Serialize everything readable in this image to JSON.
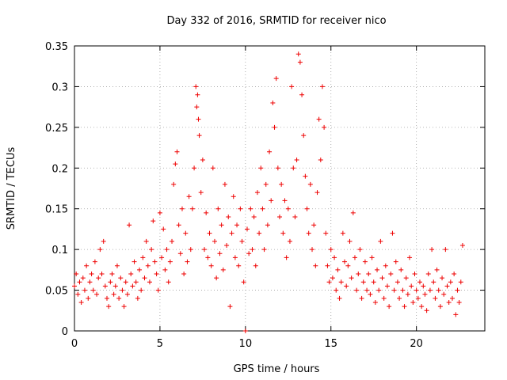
{
  "chart_data": {
    "type": "scatter",
    "title": "Day 332 of 2016, SRMTID for receiver nico",
    "xlabel": "GPS time / hours",
    "ylabel": "SRMTID / TECUs",
    "xlim": [
      0,
      24
    ],
    "ylim": [
      0,
      0.35
    ],
    "xticks": [
      0,
      5,
      10,
      15,
      20
    ],
    "yticks": [
      0,
      0.05,
      0.1,
      0.15,
      0.2,
      0.25,
      0.3,
      0.35
    ],
    "xtick_labels": [
      "0",
      "5",
      "10",
      "15",
      "20"
    ],
    "ytick_labels": [
      "0",
      "0.05",
      "0.1",
      "0.15",
      "0.2",
      "0.25",
      "0.3",
      "0.35"
    ],
    "grid": true,
    "marker": "+",
    "color": "#ee0000",
    "series": [
      {
        "points": [
          [
            0.0,
            0.055
          ],
          [
            0.1,
            0.07
          ],
          [
            0.2,
            0.045
          ],
          [
            0.3,
            0.06
          ],
          [
            0.4,
            0.035
          ],
          [
            0.5,
            0.065
          ],
          [
            0.6,
            0.05
          ],
          [
            0.7,
            0.08
          ],
          [
            0.8,
            0.04
          ],
          [
            0.9,
            0.06
          ],
          [
            1.0,
            0.07
          ],
          [
            1.1,
            0.05
          ],
          [
            1.2,
            0.085
          ],
          [
            1.3,
            0.045
          ],
          [
            1.4,
            0.065
          ],
          [
            1.5,
            0.1
          ],
          [
            1.6,
            0.07
          ],
          [
            1.7,
            0.11
          ],
          [
            1.8,
            0.055
          ],
          [
            1.9,
            0.04
          ],
          [
            2.0,
            0.03
          ],
          [
            2.1,
            0.06
          ],
          [
            2.2,
            0.07
          ],
          [
            2.3,
            0.045
          ],
          [
            2.4,
            0.055
          ],
          [
            2.5,
            0.08
          ],
          [
            2.6,
            0.04
          ],
          [
            2.7,
            0.065
          ],
          [
            2.8,
            0.05
          ],
          [
            2.9,
            0.03
          ],
          [
            3.0,
            0.06
          ],
          [
            3.1,
            0.045
          ],
          [
            3.2,
            0.13
          ],
          [
            3.3,
            0.07
          ],
          [
            3.4,
            0.055
          ],
          [
            3.5,
            0.085
          ],
          [
            3.6,
            0.06
          ],
          [
            3.7,
            0.04
          ],
          [
            3.8,
            0.075
          ],
          [
            3.9,
            0.05
          ],
          [
            4.0,
            0.09
          ],
          [
            4.1,
            0.065
          ],
          [
            4.2,
            0.11
          ],
          [
            4.3,
            0.08
          ],
          [
            4.4,
            0.06
          ],
          [
            4.5,
            0.1
          ],
          [
            4.6,
            0.135
          ],
          [
            4.7,
            0.085
          ],
          [
            4.8,
            0.07
          ],
          [
            4.9,
            0.05
          ],
          [
            5.0,
            0.145
          ],
          [
            5.1,
            0.09
          ],
          [
            5.2,
            0.125
          ],
          [
            5.3,
            0.075
          ],
          [
            5.4,
            0.1
          ],
          [
            5.5,
            0.06
          ],
          [
            5.6,
            0.085
          ],
          [
            5.7,
            0.11
          ],
          [
            5.8,
            0.18
          ],
          [
            5.9,
            0.205
          ],
          [
            6.0,
            0.22
          ],
          [
            6.1,
            0.13
          ],
          [
            6.2,
            0.095
          ],
          [
            6.3,
            0.15
          ],
          [
            6.4,
            0.07
          ],
          [
            6.5,
            0.12
          ],
          [
            6.6,
            0.085
          ],
          [
            6.7,
            0.165
          ],
          [
            6.8,
            0.1
          ],
          [
            6.9,
            0.15
          ],
          [
            7.0,
            0.2
          ],
          [
            7.1,
            0.3
          ],
          [
            7.15,
            0.275
          ],
          [
            7.2,
            0.29
          ],
          [
            7.25,
            0.26
          ],
          [
            7.3,
            0.24
          ],
          [
            7.4,
            0.17
          ],
          [
            7.5,
            0.21
          ],
          [
            7.6,
            0.1
          ],
          [
            7.7,
            0.145
          ],
          [
            7.8,
            0.09
          ],
          [
            7.9,
            0.12
          ],
          [
            8.0,
            0.08
          ],
          [
            8.1,
            0.2
          ],
          [
            8.2,
            0.11
          ],
          [
            8.3,
            0.065
          ],
          [
            8.4,
            0.15
          ],
          [
            8.5,
            0.095
          ],
          [
            8.6,
            0.13
          ],
          [
            8.7,
            0.075
          ],
          [
            8.8,
            0.18
          ],
          [
            8.9,
            0.105
          ],
          [
            9.0,
            0.14
          ],
          [
            9.1,
            0.03
          ],
          [
            9.2,
            0.12
          ],
          [
            9.3,
            0.165
          ],
          [
            9.4,
            0.09
          ],
          [
            9.5,
            0.13
          ],
          [
            9.6,
            0.08
          ],
          [
            9.7,
            0.15
          ],
          [
            9.8,
            0.11
          ],
          [
            9.9,
            0.06
          ],
          [
            10.0,
            0.0
          ],
          [
            10.1,
            0.125
          ],
          [
            10.2,
            0.095
          ],
          [
            10.3,
            0.15
          ],
          [
            10.4,
            0.1
          ],
          [
            10.5,
            0.14
          ],
          [
            10.6,
            0.08
          ],
          [
            10.7,
            0.17
          ],
          [
            10.8,
            0.12
          ],
          [
            10.9,
            0.2
          ],
          [
            11.0,
            0.15
          ],
          [
            11.1,
            0.1
          ],
          [
            11.2,
            0.18
          ],
          [
            11.3,
            0.13
          ],
          [
            11.4,
            0.22
          ],
          [
            11.5,
            0.16
          ],
          [
            11.6,
            0.28
          ],
          [
            11.7,
            0.25
          ],
          [
            11.8,
            0.31
          ],
          [
            11.9,
            0.2
          ],
          [
            12.0,
            0.14
          ],
          [
            12.1,
            0.18
          ],
          [
            12.2,
            0.12
          ],
          [
            12.3,
            0.16
          ],
          [
            12.4,
            0.09
          ],
          [
            12.5,
            0.15
          ],
          [
            12.6,
            0.11
          ],
          [
            12.7,
            0.3
          ],
          [
            12.8,
            0.2
          ],
          [
            12.9,
            0.14
          ],
          [
            13.0,
            0.21
          ],
          [
            13.1,
            0.34
          ],
          [
            13.2,
            0.33
          ],
          [
            13.3,
            0.29
          ],
          [
            13.4,
            0.24
          ],
          [
            13.5,
            0.19
          ],
          [
            13.6,
            0.15
          ],
          [
            13.7,
            0.12
          ],
          [
            13.8,
            0.18
          ],
          [
            13.9,
            0.1
          ],
          [
            14.0,
            0.13
          ],
          [
            14.1,
            0.08
          ],
          [
            14.2,
            0.17
          ],
          [
            14.3,
            0.26
          ],
          [
            14.4,
            0.21
          ],
          [
            14.5,
            0.3
          ],
          [
            14.6,
            0.25
          ],
          [
            14.7,
            0.12
          ],
          [
            14.8,
            0.08
          ],
          [
            14.9,
            0.06
          ],
          [
            15.0,
            0.1
          ],
          [
            15.1,
            0.065
          ],
          [
            15.2,
            0.09
          ],
          [
            15.3,
            0.05
          ],
          [
            15.4,
            0.075
          ],
          [
            15.5,
            0.04
          ],
          [
            15.6,
            0.06
          ],
          [
            15.7,
            0.12
          ],
          [
            15.8,
            0.085
          ],
          [
            15.9,
            0.055
          ],
          [
            16.0,
            0.08
          ],
          [
            16.1,
            0.11
          ],
          [
            16.2,
            0.065
          ],
          [
            16.3,
            0.145
          ],
          [
            16.4,
            0.09
          ],
          [
            16.5,
            0.05
          ],
          [
            16.6,
            0.07
          ],
          [
            16.7,
            0.1
          ],
          [
            16.8,
            0.04
          ],
          [
            16.9,
            0.06
          ],
          [
            17.0,
            0.085
          ],
          [
            17.1,
            0.05
          ],
          [
            17.2,
            0.07
          ],
          [
            17.3,
            0.045
          ],
          [
            17.4,
            0.09
          ],
          [
            17.5,
            0.06
          ],
          [
            17.6,
            0.035
          ],
          [
            17.7,
            0.075
          ],
          [
            17.8,
            0.05
          ],
          [
            17.9,
            0.11
          ],
          [
            18.0,
            0.065
          ],
          [
            18.1,
            0.04
          ],
          [
            18.2,
            0.08
          ],
          [
            18.3,
            0.055
          ],
          [
            18.4,
            0.03
          ],
          [
            18.5,
            0.07
          ],
          [
            18.6,
            0.12
          ],
          [
            18.7,
            0.05
          ],
          [
            18.8,
            0.085
          ],
          [
            18.9,
            0.06
          ],
          [
            19.0,
            0.04
          ],
          [
            19.1,
            0.075
          ],
          [
            19.2,
            0.05
          ],
          [
            19.3,
            0.03
          ],
          [
            19.4,
            0.065
          ],
          [
            19.5,
            0.045
          ],
          [
            19.6,
            0.09
          ],
          [
            19.7,
            0.055
          ],
          [
            19.8,
            0.035
          ],
          [
            19.9,
            0.07
          ],
          [
            20.0,
            0.05
          ],
          [
            20.1,
            0.04
          ],
          [
            20.2,
            0.06
          ],
          [
            20.3,
            0.03
          ],
          [
            20.4,
            0.055
          ],
          [
            20.5,
            0.045
          ],
          [
            20.6,
            0.025
          ],
          [
            20.7,
            0.07
          ],
          [
            20.8,
            0.05
          ],
          [
            20.9,
            0.1
          ],
          [
            21.0,
            0.06
          ],
          [
            21.1,
            0.04
          ],
          [
            21.2,
            0.075
          ],
          [
            21.3,
            0.05
          ],
          [
            21.4,
            0.03
          ],
          [
            21.5,
            0.065
          ],
          [
            21.6,
            0.045
          ],
          [
            21.7,
            0.1
          ],
          [
            21.8,
            0.055
          ],
          [
            21.9,
            0.035
          ],
          [
            22.0,
            0.06
          ],
          [
            22.1,
            0.04
          ],
          [
            22.2,
            0.07
          ],
          [
            22.3,
            0.02
          ],
          [
            22.4,
            0.05
          ],
          [
            22.5,
            0.035
          ],
          [
            22.6,
            0.06
          ],
          [
            22.7,
            0.105
          ]
        ]
      }
    ]
  }
}
